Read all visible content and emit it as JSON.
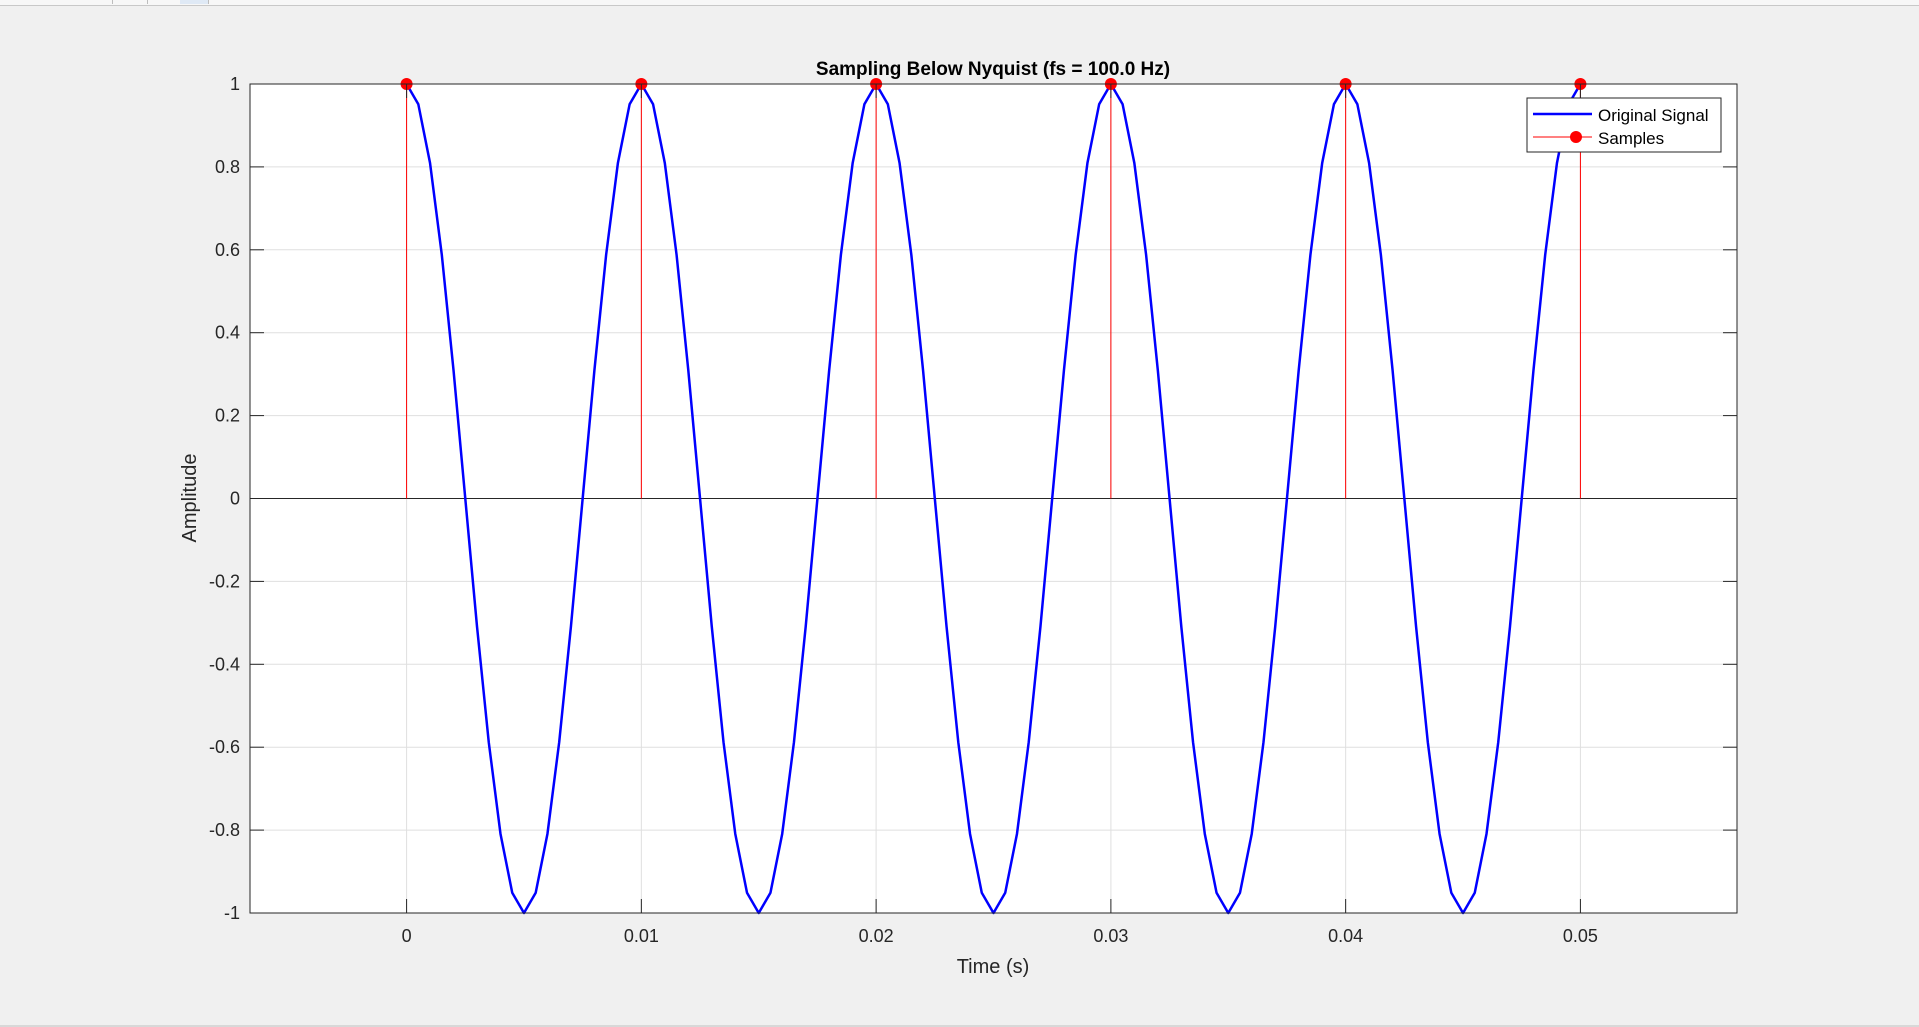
{
  "window": {
    "background": "#f0f0f0"
  },
  "chart_data": {
    "type": "line",
    "title": "Sampling Below Nyquist (fs = 100.0 Hz)",
    "xlabel": "Time (s)",
    "ylabel": "Amplitude",
    "xlim": [
      -0.00667,
      0.05667
    ],
    "ylim": [
      -1,
      1
    ],
    "x_ticks": [
      0,
      0.01,
      0.02,
      0.03,
      0.04,
      0.05
    ],
    "x_tick_labels": [
      "0",
      "0.01",
      "0.02",
      "0.03",
      "0.04",
      "0.05"
    ],
    "y_ticks": [
      -1,
      -0.8,
      -0.6,
      -0.4,
      -0.2,
      0,
      0.2,
      0.4,
      0.6,
      0.8,
      1
    ],
    "y_tick_labels": [
      "-1",
      "-0.8",
      "-0.6",
      "-0.4",
      "-0.2",
      "0",
      "0.2",
      "0.4",
      "0.6",
      "0.8",
      "1"
    ],
    "grid": true,
    "legend_position": "top-right",
    "series": [
      {
        "name": "Original Signal",
        "kind": "line",
        "color": "#0000ff",
        "x": [
          0,
          0.0005,
          0.001,
          0.0015,
          0.002,
          0.0025,
          0.003,
          0.0035,
          0.004,
          0.0045,
          0.005,
          0.0055,
          0.006,
          0.0065,
          0.007,
          0.0075,
          0.008,
          0.0085,
          0.009,
          0.0095,
          0.01,
          0.0105,
          0.011,
          0.0115,
          0.012,
          0.0125,
          0.013,
          0.0135,
          0.014,
          0.0145,
          0.015,
          0.0155,
          0.016,
          0.0165,
          0.017,
          0.0175,
          0.018,
          0.0185,
          0.019,
          0.0195,
          0.02,
          0.0205,
          0.021,
          0.0215,
          0.022,
          0.0225,
          0.023,
          0.0235,
          0.024,
          0.0245,
          0.025,
          0.0255,
          0.026,
          0.0265,
          0.027,
          0.0275,
          0.028,
          0.0285,
          0.029,
          0.0295,
          0.03,
          0.0305,
          0.031,
          0.0315,
          0.032,
          0.0325,
          0.033,
          0.0335,
          0.034,
          0.0345,
          0.035,
          0.0355,
          0.036,
          0.0365,
          0.037,
          0.0375,
          0.038,
          0.0385,
          0.039,
          0.0395,
          0.04,
          0.0405,
          0.041,
          0.0415,
          0.042,
          0.0425,
          0.043,
          0.0435,
          0.044,
          0.0445,
          0.045,
          0.0455,
          0.046,
          0.0465,
          0.047,
          0.0475,
          0.048,
          0.0485,
          0.049,
          0.0495,
          0.05
        ],
        "y": [
          1,
          0.951,
          0.809,
          0.588,
          0.309,
          0,
          -0.309,
          -0.588,
          -0.809,
          -0.951,
          -1,
          -0.951,
          -0.809,
          -0.588,
          -0.309,
          0,
          0.309,
          0.588,
          0.809,
          0.951,
          1,
          0.951,
          0.809,
          0.588,
          0.309,
          0,
          -0.309,
          -0.588,
          -0.809,
          -0.951,
          -1,
          -0.951,
          -0.809,
          -0.588,
          -0.309,
          0,
          0.309,
          0.588,
          0.809,
          0.951,
          1,
          0.951,
          0.809,
          0.588,
          0.309,
          0,
          -0.309,
          -0.588,
          -0.809,
          -0.951,
          -1,
          -0.951,
          -0.809,
          -0.588,
          -0.309,
          0,
          0.309,
          0.588,
          0.809,
          0.951,
          1,
          0.951,
          0.809,
          0.588,
          0.309,
          0,
          -0.309,
          -0.588,
          -0.809,
          -0.951,
          -1,
          -0.951,
          -0.809,
          -0.588,
          -0.309,
          0,
          0.309,
          0.588,
          0.809,
          0.951,
          1,
          0.951,
          0.809,
          0.588,
          0.309,
          0,
          -0.309,
          -0.588,
          -0.809,
          -0.951,
          -1,
          -0.951,
          -0.809,
          -0.588,
          -0.309,
          0,
          0.309,
          0.588,
          0.809,
          0.951,
          1
        ]
      },
      {
        "name": "Samples",
        "kind": "stem",
        "color": "#ff0000",
        "x": [
          0,
          0.01,
          0.02,
          0.03,
          0.04,
          0.05
        ],
        "y": [
          1,
          1,
          1,
          1,
          1,
          1
        ]
      }
    ]
  }
}
